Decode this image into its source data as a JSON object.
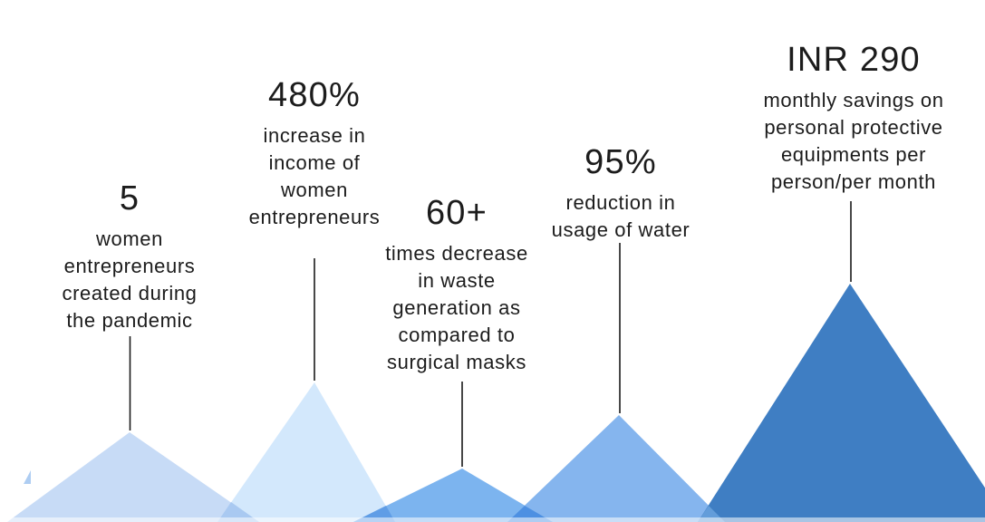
{
  "colors": {
    "ink": "#1a1a1a",
    "background": "#ffffff"
  },
  "stats": [
    {
      "value": "5",
      "lines": [
        "women",
        "entrepreneurs",
        "created during",
        "the pandemic"
      ],
      "triangle_color": "#c7dbf6"
    },
    {
      "value": "480%",
      "lines": [
        "increase in",
        "income of",
        "women",
        "entrepreneurs"
      ],
      "triangle_color": "#d3e8fc"
    },
    {
      "value": "60+",
      "lines": [
        "times decrease",
        "in waste",
        "generation as",
        "compared to",
        "surgical masks"
      ],
      "triangle_color": "#7cb4ef"
    },
    {
      "value": "95%",
      "lines": [
        "reduction in",
        "usage of water"
      ],
      "triangle_color": "#85b5ee"
    },
    {
      "value": "INR 290",
      "lines": [
        "monthly savings on",
        "personal protective",
        "equipments per",
        "person/per month"
      ],
      "triangle_color": "#3f7ec3"
    }
  ],
  "overlaps": [
    {
      "between": "peak-1-and-2",
      "color": "#a9c9f1"
    },
    {
      "between": "peak-2-and-3",
      "color": "#5f9de6"
    },
    {
      "between": "peak-3-and-4",
      "color": "#4d90e2"
    },
    {
      "between": "peak-4-and-5",
      "color": "#639dda"
    }
  ],
  "decor": {
    "sliver_color": "#aecdf2"
  },
  "chart_data": {
    "type": "bar",
    "title": "",
    "categories": [
      "women entrepreneurs created during the pandemic",
      "increase in income of women entrepreneurs",
      "times decrease in waste generation as compared to surgical masks",
      "reduction in usage of water",
      "monthly savings on personal protective equipments per person/per month"
    ],
    "values": [
      5,
      480,
      60,
      95,
      290
    ],
    "value_labels": [
      "5",
      "480%",
      "60+",
      "95%",
      "INR 290"
    ],
    "legend": false,
    "grid": false,
    "layout_hint": "five translucent blue mountain peaks along the bottom; peak apex y-pixels 477, 422, 517, 458, 313; vertical connector lines join each caption to its peak"
  }
}
